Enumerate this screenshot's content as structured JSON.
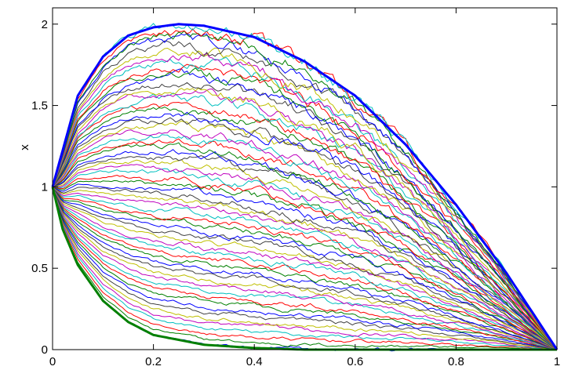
{
  "chart_data": {
    "type": "line",
    "title": "",
    "xlabel": "",
    "ylabel": "x",
    "xlim": [
      0,
      1
    ],
    "ylim": [
      0,
      2.1
    ],
    "xticks": [
      "0",
      "0.2",
      "0.4",
      "0.6",
      "0.8",
      "1"
    ],
    "yticks": [
      "0",
      "0.5",
      "1",
      "1.5",
      "2"
    ],
    "grid": false,
    "legend": "none",
    "colors": [
      "#0000ff",
      "#008000",
      "#ff0000",
      "#00bfbf",
      "#bf00bf",
      "#bfbf00",
      "#404040"
    ],
    "upper_envelope": {
      "color": "#0000ff",
      "x": [
        0,
        0.05,
        0.1,
        0.15,
        0.2,
        0.25,
        0.3,
        0.4,
        0.5,
        0.6,
        0.7,
        0.8,
        0.9,
        1.0
      ],
      "y": [
        1.0,
        1.56,
        1.8,
        1.93,
        1.98,
        2.0,
        1.99,
        1.92,
        1.77,
        1.56,
        1.26,
        0.89,
        0.47,
        0.0
      ]
    },
    "lower_envelope": {
      "color": "#008000",
      "x": [
        0,
        0.02,
        0.05,
        0.1,
        0.15,
        0.2,
        0.3,
        0.4,
        0.5,
        0.6,
        0.7,
        0.8,
        0.9,
        1.0
      ],
      "y": [
        1.0,
        0.74,
        0.52,
        0.3,
        0.17,
        0.09,
        0.03,
        0.01,
        0.0,
        0.0,
        0.0,
        0.0,
        0.0,
        0.0
      ]
    },
    "path_count": 60,
    "path_start": 1.0,
    "path_end": 0.0
  }
}
